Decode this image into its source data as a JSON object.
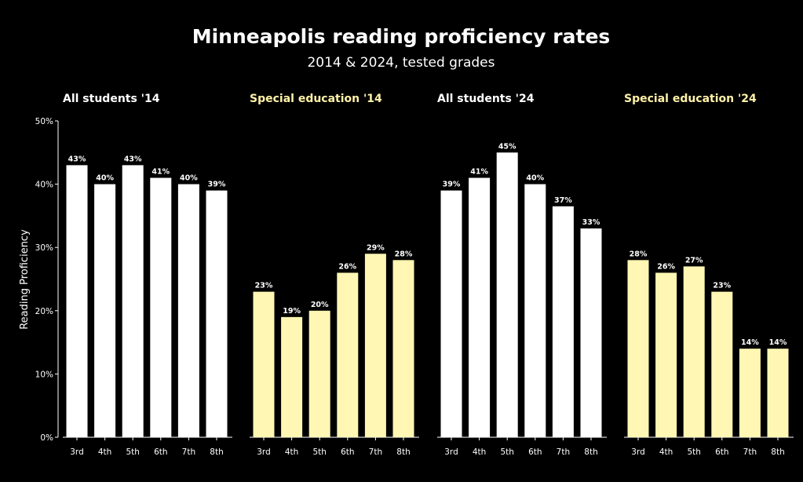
{
  "chart_data": {
    "type": "bar",
    "title": "Minneapolis reading proficiency rates",
    "subtitle": "2014 & 2024, tested grades",
    "ylabel": "Reading Proficiency",
    "ylim": [
      0,
      50
    ],
    "yticks": [
      0,
      10,
      20,
      30,
      40,
      50
    ],
    "ytick_labels": [
      "0%",
      "10%",
      "20%",
      "30%",
      "40%",
      "50%"
    ],
    "grid": false,
    "categories": [
      "3rd",
      "4th",
      "5th",
      "6th",
      "7th",
      "8th"
    ],
    "colors": {
      "all_students": "#ffffff",
      "special_education": "#fff7b3",
      "title_all_students": "#ffffff",
      "title_special_education": "#fff2a8",
      "background": "#000000"
    },
    "panels": [
      {
        "name": "All students '14",
        "color_key": "all_students",
        "values": [
          43,
          40,
          43,
          41,
          40,
          39
        ],
        "labels": [
          "43%",
          "40%",
          "43%",
          "41%",
          "40%",
          "39%"
        ]
      },
      {
        "name": "Special education '14",
        "color_key": "special_education",
        "values": [
          23,
          19,
          20,
          26,
          29,
          28
        ],
        "labels": [
          "23%",
          "19%",
          "20%",
          "26%",
          "29%",
          "28%"
        ]
      },
      {
        "name": "All students '24",
        "color_key": "all_students",
        "values": [
          39,
          41,
          45,
          40,
          36.5,
          33
        ],
        "labels": [
          "39%",
          "41%",
          "45%",
          "40%",
          "37%",
          "33%"
        ]
      },
      {
        "name": "Special education '24",
        "color_key": "special_education",
        "values": [
          28,
          26,
          27,
          23,
          14,
          14
        ],
        "labels": [
          "28%",
          "26%",
          "27%",
          "23%",
          "14%",
          "14%"
        ]
      }
    ]
  }
}
